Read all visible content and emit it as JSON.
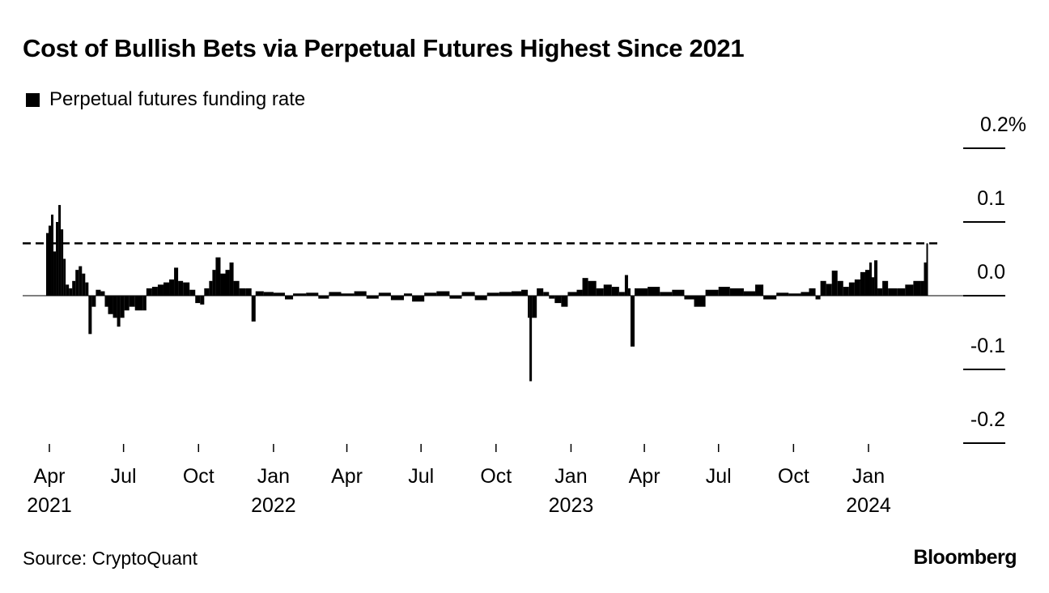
{
  "chart_data": {
    "type": "bar",
    "title": "Cost of Bullish Bets via Perpetual Futures Highest Since 2021",
    "legend": [
      {
        "name": "Perpetual futures funding rate",
        "color": "#000000"
      }
    ],
    "legend_placement": "top-left",
    "source": "Source: CryptoQuant",
    "logo": "Bloomberg",
    "ylim": [
      -0.23,
      0.2
    ],
    "yticks": [
      {
        "value": 0.2,
        "label": "0.2%"
      },
      {
        "value": 0.1,
        "label": "0.1"
      },
      {
        "value": 0.0,
        "label": "0.0"
      },
      {
        "value": -0.1,
        "label": "-0.1"
      },
      {
        "value": -0.2,
        "label": "-0.2"
      }
    ],
    "xticks": [
      {
        "date": "2021-04-01",
        "label": "Apr",
        "year": "2021"
      },
      {
        "date": "2021-07-01",
        "label": "Jul",
        "year": ""
      },
      {
        "date": "2021-10-01",
        "label": "Oct",
        "year": ""
      },
      {
        "date": "2022-01-01",
        "label": "Jan",
        "year": "2022"
      },
      {
        "date": "2022-04-01",
        "label": "Apr",
        "year": ""
      },
      {
        "date": "2022-07-01",
        "label": "Jul",
        "year": ""
      },
      {
        "date": "2022-10-01",
        "label": "Oct",
        "year": ""
      },
      {
        "date": "2023-01-01",
        "label": "Jan",
        "year": "2023"
      },
      {
        "date": "2023-04-01",
        "label": "Apr",
        "year": ""
      },
      {
        "date": "2023-07-01",
        "label": "Jul",
        "year": ""
      },
      {
        "date": "2023-10-01",
        "label": "Oct",
        "year": ""
      },
      {
        "date": "2024-01-01",
        "label": "Jan",
        "year": "2024"
      }
    ],
    "reference_line": {
      "value": 0.071,
      "style": "dashed"
    },
    "grid": false,
    "series": [
      {
        "color": "#000000",
        "points": [
          [
            "2021-03-28",
            0.085
          ],
          [
            "2021-03-31",
            0.095
          ],
          [
            "2021-04-03",
            0.11
          ],
          [
            "2021-04-06",
            0.06
          ],
          [
            "2021-04-09",
            0.1
          ],
          [
            "2021-04-12",
            0.123
          ],
          [
            "2021-04-15",
            0.09
          ],
          [
            "2021-04-18",
            0.05
          ],
          [
            "2021-04-21",
            0.015
          ],
          [
            "2021-04-25",
            0.01
          ],
          [
            "2021-04-29",
            0.02
          ],
          [
            "2021-05-03",
            0.035
          ],
          [
            "2021-05-07",
            0.04
          ],
          [
            "2021-05-11",
            0.03
          ],
          [
            "2021-05-15",
            0.018
          ],
          [
            "2021-05-19",
            -0.052
          ],
          [
            "2021-05-23",
            -0.015
          ],
          [
            "2021-05-28",
            0.008
          ],
          [
            "2021-06-03",
            0.006
          ],
          [
            "2021-06-08",
            -0.015
          ],
          [
            "2021-06-12",
            -0.025
          ],
          [
            "2021-06-18",
            -0.03
          ],
          [
            "2021-06-23",
            -0.042
          ],
          [
            "2021-06-27",
            -0.03
          ],
          [
            "2021-07-02",
            -0.02
          ],
          [
            "2021-07-08",
            -0.015
          ],
          [
            "2021-07-15",
            -0.02
          ],
          [
            "2021-07-25",
            -0.02
          ],
          [
            "2021-07-29",
            0.01
          ],
          [
            "2021-08-05",
            0.012
          ],
          [
            "2021-08-12",
            0.015
          ],
          [
            "2021-08-19",
            0.018
          ],
          [
            "2021-08-26",
            0.022
          ],
          [
            "2021-09-01",
            0.038
          ],
          [
            "2021-09-06",
            0.02
          ],
          [
            "2021-09-12",
            0.018
          ],
          [
            "2021-09-20",
            0.008
          ],
          [
            "2021-09-27",
            -0.01
          ],
          [
            "2021-10-03",
            -0.012
          ],
          [
            "2021-10-08",
            0.01
          ],
          [
            "2021-10-14",
            0.02
          ],
          [
            "2021-10-18",
            0.035
          ],
          [
            "2021-10-22",
            0.052
          ],
          [
            "2021-10-28",
            0.03
          ],
          [
            "2021-11-03",
            0.035
          ],
          [
            "2021-11-08",
            0.045
          ],
          [
            "2021-11-13",
            0.02
          ],
          [
            "2021-11-20",
            0.01
          ],
          [
            "2021-11-28",
            0.01
          ],
          [
            "2021-12-05",
            -0.035
          ],
          [
            "2021-12-10",
            0.006
          ],
          [
            "2021-12-20",
            0.005
          ],
          [
            "2022-01-01",
            0.004
          ],
          [
            "2022-01-15",
            -0.005
          ],
          [
            "2022-01-25",
            0.003
          ],
          [
            "2022-02-10",
            0.004
          ],
          [
            "2022-02-25",
            -0.004
          ],
          [
            "2022-03-10",
            0.005
          ],
          [
            "2022-03-25",
            0.003
          ],
          [
            "2022-04-10",
            0.006
          ],
          [
            "2022-04-25",
            -0.004
          ],
          [
            "2022-05-10",
            0.004
          ],
          [
            "2022-05-25",
            -0.006
          ],
          [
            "2022-06-10",
            0.003
          ],
          [
            "2022-06-20",
            -0.008
          ],
          [
            "2022-07-05",
            0.004
          ],
          [
            "2022-07-20",
            0.006
          ],
          [
            "2022-08-05",
            -0.004
          ],
          [
            "2022-08-20",
            0.005
          ],
          [
            "2022-09-05",
            -0.006
          ],
          [
            "2022-09-20",
            0.004
          ],
          [
            "2022-10-05",
            0.005
          ],
          [
            "2022-10-20",
            0.006
          ],
          [
            "2022-11-01",
            0.008
          ],
          [
            "2022-11-09",
            -0.03
          ],
          [
            "2022-11-11",
            -0.116
          ],
          [
            "2022-11-14",
            -0.03
          ],
          [
            "2022-11-20",
            0.01
          ],
          [
            "2022-11-28",
            0.005
          ],
          [
            "2022-12-05",
            -0.004
          ],
          [
            "2022-12-12",
            -0.01
          ],
          [
            "2022-12-20",
            -0.015
          ],
          [
            "2022-12-28",
            0.005
          ],
          [
            "2023-01-08",
            0.008
          ],
          [
            "2023-01-15",
            0.024
          ],
          [
            "2023-01-22",
            0.02
          ],
          [
            "2023-02-01",
            0.01
          ],
          [
            "2023-02-10",
            0.015
          ],
          [
            "2023-02-20",
            0.012
          ],
          [
            "2023-03-01",
            0.005
          ],
          [
            "2023-03-08",
            0.028
          ],
          [
            "2023-03-12",
            0.01
          ],
          [
            "2023-03-15",
            -0.069
          ],
          [
            "2023-03-20",
            0.01
          ],
          [
            "2023-04-05",
            0.012
          ],
          [
            "2023-04-20",
            0.005
          ],
          [
            "2023-05-05",
            0.008
          ],
          [
            "2023-05-20",
            -0.005
          ],
          [
            "2023-06-01",
            -0.015
          ],
          [
            "2023-06-15",
            0.008
          ],
          [
            "2023-07-01",
            0.012
          ],
          [
            "2023-07-15",
            0.01
          ],
          [
            "2023-08-01",
            0.006
          ],
          [
            "2023-08-15",
            0.015
          ],
          [
            "2023-08-25",
            -0.005
          ],
          [
            "2023-09-10",
            0.004
          ],
          [
            "2023-09-25",
            0.003
          ],
          [
            "2023-10-10",
            0.005
          ],
          [
            "2023-10-20",
            0.01
          ],
          [
            "2023-10-28",
            -0.005
          ],
          [
            "2023-11-03",
            0.02
          ],
          [
            "2023-11-10",
            0.016
          ],
          [
            "2023-11-17",
            0.034
          ],
          [
            "2023-11-24",
            0.02
          ],
          [
            "2023-12-01",
            0.012
          ],
          [
            "2023-12-08",
            0.018
          ],
          [
            "2023-12-15",
            0.022
          ],
          [
            "2023-12-22",
            0.032
          ],
          [
            "2023-12-28",
            0.035
          ],
          [
            "2024-01-02",
            0.045
          ],
          [
            "2024-01-05",
            0.025
          ],
          [
            "2024-01-08",
            0.048
          ],
          [
            "2024-01-12",
            0.01
          ],
          [
            "2024-01-18",
            0.02
          ],
          [
            "2024-01-25",
            0.01
          ],
          [
            "2024-02-05",
            0.01
          ],
          [
            "2024-02-15",
            0.015
          ],
          [
            "2024-02-25",
            0.02
          ],
          [
            "2024-03-05",
            0.02
          ],
          [
            "2024-03-09",
            0.045
          ],
          [
            "2024-03-12",
            0.071
          ]
        ]
      }
    ]
  }
}
